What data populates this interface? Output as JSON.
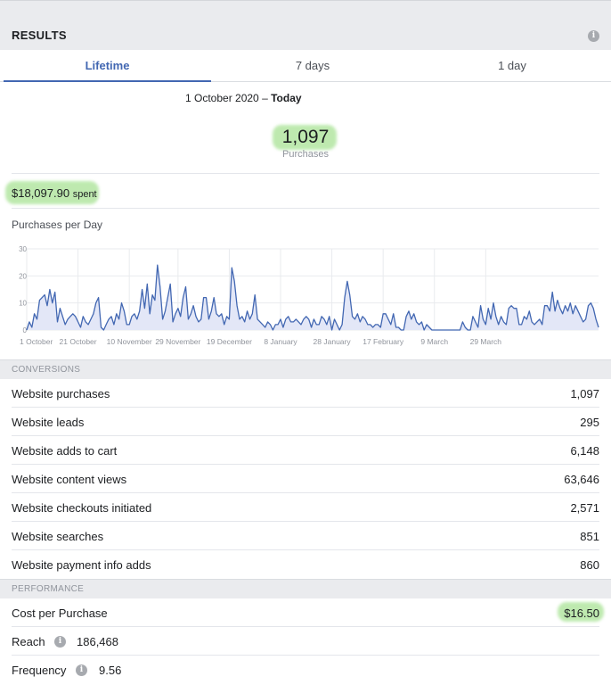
{
  "header": {
    "title": "RESULTS",
    "info_icon": "info-icon"
  },
  "tabs": [
    {
      "label": "Lifetime",
      "active": true
    },
    {
      "label": "7 days",
      "active": false
    },
    {
      "label": "1 day",
      "active": false
    }
  ],
  "date_range": {
    "start": "1 October 2020",
    "separator": "–",
    "end": "Today"
  },
  "summary": {
    "total": "1,097",
    "total_label": "Purchases",
    "spent_amount": "$18,097.90",
    "spent_unit": "spent"
  },
  "chart_title": "Purchases per Day",
  "chart_data": {
    "type": "area",
    "y_ticks": [
      "0",
      "10",
      "20",
      "30"
    ],
    "ylim": [
      0,
      30
    ],
    "x_ticks": [
      "1 October",
      "21 October",
      "10 November",
      "29 November",
      "19 December",
      "8 January",
      "28 January",
      "17 February",
      "9 March",
      "29 March"
    ],
    "x_tick_days": [
      0,
      20,
      40,
      59,
      79,
      99,
      119,
      139,
      159,
      179
    ],
    "grid": true,
    "line_color": "#4267b2",
    "fill_color": "#e3e7f7",
    "values": [
      0,
      3,
      1,
      6,
      4,
      11,
      12,
      13,
      9,
      15,
      10,
      14,
      3,
      8,
      5,
      2,
      4,
      5,
      6,
      5,
      3,
      1,
      5,
      3,
      2,
      4,
      6,
      10,
      12,
      1,
      0,
      2,
      4,
      5,
      2,
      6,
      4,
      10,
      7,
      2,
      2,
      5,
      6,
      4,
      7,
      15,
      8,
      17,
      6,
      13,
      11,
      24,
      16,
      4,
      7,
      12,
      17,
      3,
      6,
      8,
      5,
      12,
      16,
      4,
      6,
      9,
      5,
      3,
      4,
      12,
      12,
      4,
      7,
      12,
      6,
      5,
      6,
      2,
      5,
      4,
      23,
      18,
      9,
      4,
      5,
      3,
      7,
      4,
      6,
      13,
      4,
      3,
      2,
      1,
      3,
      2,
      0,
      2,
      2,
      4,
      1,
      4,
      5,
      3,
      3,
      4,
      3,
      2,
      4,
      5,
      4,
      1,
      4,
      2,
      2,
      5,
      4,
      2,
      5,
      0,
      4,
      2,
      0,
      2,
      12,
      18,
      13,
      5,
      4,
      6,
      3,
      5,
      4,
      2,
      2,
      1,
      2,
      2,
      1,
      6,
      6,
      4,
      2,
      6,
      1,
      1,
      0,
      0,
      5,
      7,
      4,
      6,
      3,
      2,
      3,
      0,
      2,
      1,
      0,
      0,
      0,
      0,
      0,
      0,
      0,
      0,
      0,
      0,
      0,
      0,
      3,
      1,
      0,
      0,
      5,
      3,
      1,
      9,
      4,
      2,
      8,
      4,
      10,
      5,
      2,
      5,
      3,
      2,
      8,
      9,
      8,
      8,
      2,
      2,
      5,
      4,
      7,
      3,
      2,
      3,
      4,
      2,
      9,
      9,
      7,
      14,
      7,
      11,
      8,
      6,
      9,
      7,
      10,
      6,
      9,
      7,
      5,
      3,
      4,
      9,
      10,
      8,
      4,
      1
    ]
  },
  "conversions_heading": "CONVERSIONS",
  "conversions": [
    {
      "label": "Website purchases",
      "value": "1,097"
    },
    {
      "label": "Website leads",
      "value": "295"
    },
    {
      "label": "Website adds to cart",
      "value": "6,148"
    },
    {
      "label": "Website content views",
      "value": "63,646"
    },
    {
      "label": "Website checkouts initiated",
      "value": "2,571"
    },
    {
      "label": "Website searches",
      "value": "851"
    },
    {
      "label": "Website payment info adds",
      "value": "860"
    }
  ],
  "performance_heading": "PERFORMANCE",
  "performance": {
    "cost_label": "Cost per Purchase",
    "cost_value": "$16.50",
    "reach_label": "Reach",
    "reach_value": "186,468",
    "frequency_label": "Frequency",
    "frequency_value": "9.56"
  },
  "colors": {
    "accent": "#4267b2",
    "highlight": "#b3e6a2"
  }
}
